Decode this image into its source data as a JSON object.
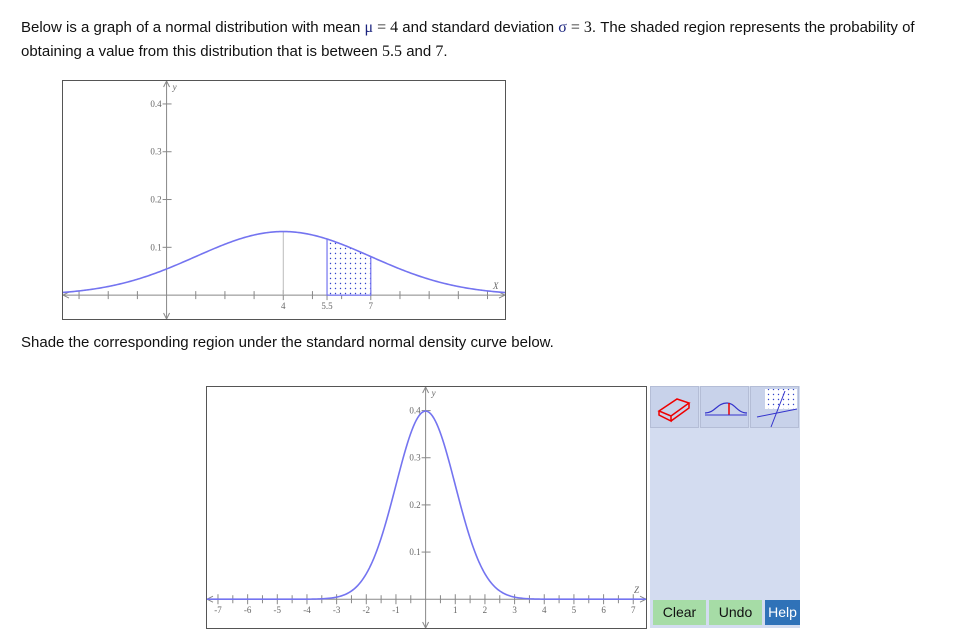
{
  "prompt": [
    "Below is a graph of a normal distribution with mean ",
    "μ",
    " = 4",
    " and standard deviation ",
    "σ",
    " = 3",
    ". The shaded region represents the probability of obtaining a value from this distribution that is between ",
    "5.5",
    " and ",
    "7",
    "."
  ],
  "instruction": "Shade the corresponding region under the standard normal density curve below.",
  "buttons": [
    "Clear",
    "Undo",
    "Help"
  ],
  "chart_data": [
    {
      "type": "normal",
      "mean": 4,
      "sd": 3,
      "shade": [
        5.5,
        7
      ],
      "color": "#7474f0",
      "xlabel": "X",
      "ylabel": "y",
      "xlim": [
        -3.55,
        11.6
      ],
      "ylim": [
        -0.05,
        0.448
      ],
      "xticks": [
        4,
        5.5,
        7
      ],
      "xminor_ticks": [
        -3,
        -2,
        -1,
        1,
        2,
        3,
        5,
        6,
        8,
        9,
        10,
        11
      ],
      "yticks": [
        0.1,
        0.2,
        0.3,
        0.4
      ]
    },
    {
      "type": "normal",
      "mean": 0,
      "sd": 1,
      "color": "#7474f0",
      "xlabel": "Z",
      "ylabel": "y",
      "xlim": [
        -7.37,
        7.43
      ],
      "ylim": [
        -0.061,
        0.45
      ],
      "xticks": [
        -7,
        -6,
        -5,
        -4,
        -3,
        -2,
        -1,
        1,
        2,
        3,
        4,
        5,
        6,
        7
      ],
      "xminor_ticks": [
        -6.5,
        -5.5,
        -4.5,
        -3.5,
        -2.5,
        -1.5,
        -0.5,
        0.5,
        1.5,
        2.5,
        3.5,
        4.5,
        5.5,
        6.5
      ],
      "yticks": [
        0.1,
        0.2,
        0.3,
        0.4
      ]
    }
  ]
}
